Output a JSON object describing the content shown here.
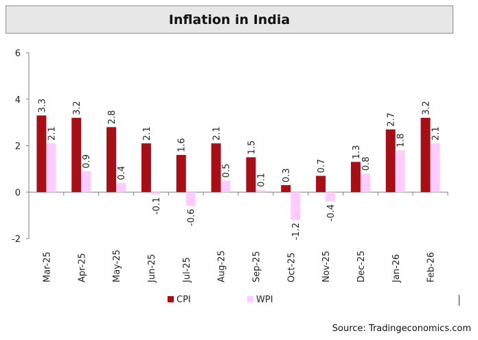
{
  "title": "Inflation in India",
  "source": "Source: Tradingeconomics.com",
  "chart_data": {
    "type": "bar",
    "title": "Inflation in India",
    "categories": [
      "Mar-25",
      "Apr-25",
      "May-25",
      "Jun-25",
      "Jul-25",
      "Aug-25",
      "Sep-25",
      "Oct-25",
      "Nov-25",
      "Dec-25",
      "Jan-26",
      "Feb-26"
    ],
    "series": [
      {
        "name": "CPI",
        "color": "#a50f15",
        "values": [
          3.3,
          3.2,
          2.8,
          2.1,
          1.6,
          2.1,
          1.5,
          0.3,
          0.7,
          1.3,
          2.7,
          3.2
        ]
      },
      {
        "name": "WPI",
        "color": "#ffccff",
        "values": [
          2.1,
          0.9,
          0.4,
          -0.1,
          -0.6,
          0.5,
          0.1,
          -1.2,
          -0.4,
          0.8,
          1.8,
          2.1
        ]
      }
    ],
    "ylim": [
      -2,
      6
    ],
    "yticks": [
      -2,
      0,
      2,
      4,
      6
    ],
    "xlabel": "",
    "ylabel": "",
    "grid": false,
    "legend": "bottom-center"
  }
}
